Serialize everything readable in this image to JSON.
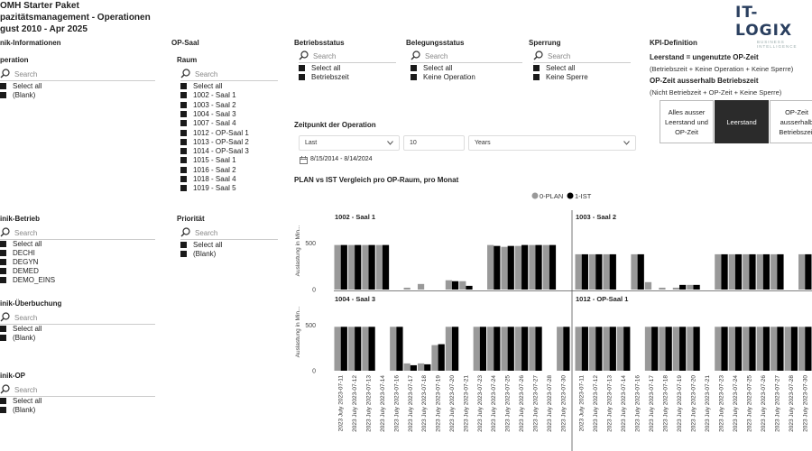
{
  "header": {
    "title": "OMH Starter Paket",
    "subtitle": "pazitätsmanagement - Operationen",
    "period": "gust 2010 - Apr 2025",
    "logo": "IT-LOGIX",
    "logo_sub": "BUSINESS INTELLIGENCE"
  },
  "klinik_info": {
    "title": "nik-Informationen"
  },
  "operation": {
    "label": "peration",
    "placeholder": "Search",
    "items": [
      "Select all",
      "(Blank)"
    ]
  },
  "klinik_betrieb": {
    "label": "inik-Betrieb",
    "placeholder": "Search",
    "items": [
      "Select all",
      "DECHI",
      "DEGYN",
      "DEMED",
      "DEMO_EINS"
    ]
  },
  "klinik_ueberbuchung": {
    "label": "inik-Überbuchung",
    "placeholder": "Search",
    "items": [
      "Select all",
      "(Blank)"
    ]
  },
  "klinik_op": {
    "label": "inik-OP",
    "placeholder": "Search",
    "items": [
      "Select all",
      "(Blank)"
    ]
  },
  "op_saal": {
    "title": "OP-Saal",
    "raum_label": "Raum",
    "placeholder": "Search",
    "items": [
      "Select all",
      "1002 - Saal 1",
      "1003 - Saal 2",
      "1004 - Saal 3",
      "1007 - Saal 4",
      "1012 - OP-Saal 1",
      "1013 - OP-Saal 2",
      "1014 - OP-Saal 3",
      "1015 - Saal 1",
      "1016 - Saal 2",
      "1018 - Saal 4",
      "1019 - Saal 5"
    ]
  },
  "prioritaet": {
    "label": "Priorität",
    "placeholder": "Search",
    "items": [
      "Select all",
      "(Blank)"
    ]
  },
  "betriebsstatus": {
    "label": "Betriebsstatus",
    "placeholder": "Search",
    "items": [
      "Select all",
      "Betriebszeit"
    ]
  },
  "belegungsstatus": {
    "label": "Belegungsstatus",
    "placeholder": "Search",
    "items": [
      "Select all",
      "Keine Operation"
    ]
  },
  "sperrung": {
    "label": "Sperrung",
    "placeholder": "Search",
    "items": [
      "Select all",
      "Keine Sperre"
    ]
  },
  "kpi": {
    "title": "KPI-Definition",
    "leerstand_title": "Leerstand = ungenutzte OP-Zeit",
    "leerstand_def": "(Betriebszeit + Keine Operation + Keine Sperre)",
    "opzeit_title": "OP-Zeit ausserhalb Betriebszeit",
    "opzeit_def": "(Nicht Betriebzeit + OP-Zeit + Keine Sperre)",
    "buttons": [
      "Alles ausser Leerstand und OP-Zeit",
      "Leerstand",
      "OP-Zeit ausserhalb Betriebszeit"
    ],
    "active": "Leerstand"
  },
  "zeitpunkt": {
    "label": "Zeitpunkt der Operation",
    "mode": "Last",
    "count": "10",
    "unit": "Years",
    "range": "8/15/2014 - 8/14/2024"
  },
  "chart_title": "PLAN vs IST Vergleich pro OP-Raum, pro Monat",
  "legend": [
    "0-PLAN",
    "1-IST"
  ],
  "colors": {
    "plan": "#999999",
    "ist": "#000000"
  },
  "chart_data": {
    "type": "bar",
    "title": "PLAN vs IST Vergleich pro OP-Raum, pro Monat",
    "ylabel": "Auslastung in Min...",
    "ylim": [
      0,
      700
    ],
    "yticks": [
      0,
      500
    ],
    "categories": [
      "2023 July 2023-07-11",
      "2023 July 2023-07-12",
      "2023 July 2023-07-13",
      "2023 July 2023-07-14",
      "2023 July 2023-07-16",
      "2023 July 2023-07-17",
      "2023 July 2023-07-18",
      "2023 July 2023-07-19",
      "2023 July 2023-07-20",
      "2023 July 2023-07-21",
      "2023 July 2023-07-23",
      "2023 July 2023-07-24",
      "2023 July 2023-07-25",
      "2023 July 2023-07-26",
      "2023 July 2023-07-27",
      "2023 July 2023-07-28",
      "2023 July 2023-07-30"
    ],
    "panels": [
      {
        "name": "1002 - Saal 1",
        "series": [
          {
            "name": "0-PLAN",
            "values": [
              480,
              480,
              480,
              480,
              0,
              20,
              60,
              0,
              100,
              90,
              0,
              480,
              460,
              470,
              480,
              480,
              0
            ]
          },
          {
            "name": "1-IST",
            "values": [
              480,
              480,
              480,
              480,
              0,
              0,
              0,
              0,
              90,
              40,
              0,
              470,
              470,
              480,
              480,
              480,
              0
            ]
          }
        ]
      },
      {
        "name": "1003 - Saal 2",
        "series": [
          {
            "name": "0-PLAN",
            "values": [
              380,
              380,
              380,
              0,
              380,
              80,
              20,
              20,
              50,
              0,
              380,
              380,
              380,
              380,
              380,
              0,
              380
            ]
          },
          {
            "name": "1-IST",
            "values": [
              380,
              380,
              380,
              0,
              380,
              0,
              0,
              50,
              50,
              0,
              380,
              380,
              380,
              380,
              380,
              0,
              380
            ]
          }
        ]
      },
      {
        "name": "1004 - Saal 3",
        "series": [
          {
            "name": "0-PLAN",
            "values": [
              480,
              480,
              480,
              0,
              480,
              80,
              80,
              280,
              480,
              0,
              480,
              480,
              480,
              480,
              480,
              0,
              480
            ]
          },
          {
            "name": "1-IST",
            "values": [
              480,
              480,
              480,
              0,
              480,
              60,
              70,
              290,
              480,
              0,
              480,
              480,
              480,
              480,
              480,
              0,
              480
            ]
          }
        ]
      },
      {
        "name": "1012 - OP-Saal 1",
        "series": [
          {
            "name": "0-PLAN",
            "values": [
              480,
              480,
              480,
              480,
              0,
              480,
              480,
              480,
              480,
              0,
              480,
              480,
              480,
              480,
              480,
              480,
              480
            ]
          },
          {
            "name": "1-IST",
            "values": [
              480,
              480,
              480,
              480,
              0,
              480,
              480,
              480,
              480,
              0,
              480,
              480,
              480,
              480,
              480,
              480,
              480
            ]
          }
        ]
      }
    ]
  }
}
